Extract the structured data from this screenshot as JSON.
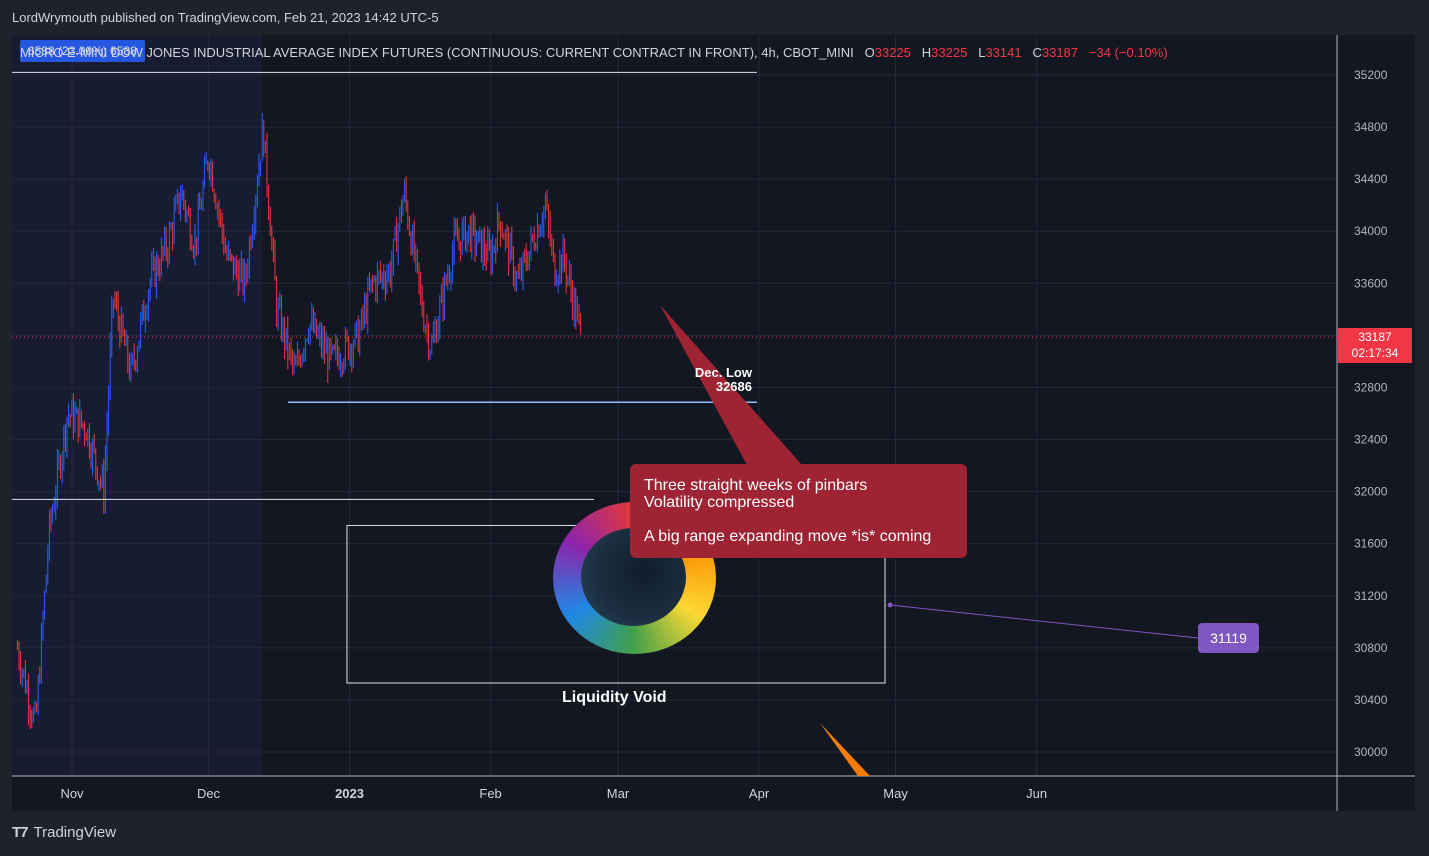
{
  "header": {
    "publisher_line": "LordWrymouth published on TradingView.com, Feb 21, 2023 14:42 UTC-5"
  },
  "symbol": {
    "badge": "6588 (23.00%) 6588",
    "name": "MICRO E-MINI DOW JONES INDUSTRIAL AVERAGE INDEX FUTURES (CONTINUOUS: CURRENT CONTRACT IN FRONT), 4h, CBOT_MINI",
    "open_label": "O",
    "open": "33225",
    "high_label": "H",
    "high": "33225",
    "low_label": "L",
    "low": "33141",
    "close_label": "C",
    "close": "33187",
    "change": "−34 (−0.10%)"
  },
  "price_tag": {
    "price": "33187",
    "countdown": "02:17:34"
  },
  "annotations": {
    "dec_low_title": "Dec. Low",
    "dec_low_value": "32686",
    "callout_line1": "Three straight weeks of pinbars",
    "callout_line2": "Volatility compressed",
    "callout_line3": "A big range expanding move *is* coming",
    "target_label": "31119",
    "void_label": "Liquidity Void"
  },
  "footer": {
    "logo_text": "TradingView"
  },
  "colors": {
    "background": "#131722",
    "up": "#2962ff",
    "down": "#f23645",
    "callout": "#9e2433",
    "target": "#7e57c2"
  },
  "chart_data": {
    "type": "candlestick",
    "timeframe": "4h",
    "y_ticks": [
      30000,
      30400,
      30800,
      31200,
      31600,
      32000,
      32400,
      32800,
      33200,
      33600,
      34000,
      34400,
      34800,
      35200
    ],
    "ylim": [
      29820,
      35400
    ],
    "x_ticks": [
      "Nov",
      "Dec",
      "2023",
      "Feb",
      "Mar",
      "Apr",
      "May",
      "Jun"
    ],
    "price_path": [
      [
        "Oct 20",
        30800
      ],
      [
        "Oct 24",
        30200
      ],
      [
        "Oct 27",
        31700
      ],
      [
        "Oct 31",
        32600
      ],
      [
        "Nov 4",
        32500
      ],
      [
        "Nov 8",
        32000
      ],
      [
        "Nov 10",
        33500
      ],
      [
        "Nov 14",
        32900
      ],
      [
        "Nov 18",
        33600
      ],
      [
        "Nov 22",
        33900
      ],
      [
        "Nov 25",
        34300
      ],
      [
        "Nov 28",
        33900
      ],
      [
        "Dec 1",
        34600
      ],
      [
        "Dec 5",
        33800
      ],
      [
        "Dec 9",
        33600
      ],
      [
        "Dec 13",
        34800
      ],
      [
        "Dec 16",
        33400
      ],
      [
        "Dec 20",
        32900
      ],
      [
        "Dec 23",
        33300
      ],
      [
        "Dec 28",
        33000
      ],
      [
        "Jan 3",
        33200
      ],
      [
        "Jan 6",
        33600
      ],
      [
        "Jan 10",
        33700
      ],
      [
        "Jan 13",
        34300
      ],
      [
        "Jan 17",
        33400
      ],
      [
        "Jan 19",
        33100
      ],
      [
        "Jan 24",
        33900
      ],
      [
        "Jan 27",
        34000
      ],
      [
        "Feb 1",
        33800
      ],
      [
        "Feb 3",
        34100
      ],
      [
        "Feb 7",
        33600
      ],
      [
        "Feb 10",
        33900
      ],
      [
        "Feb 13",
        34200
      ],
      [
        "Feb 15",
        33700
      ],
      [
        "Feb 17",
        33800
      ],
      [
        "Feb 21",
        33187
      ]
    ],
    "levels": [
      {
        "label": "Dec. Low",
        "price": 32686
      },
      {
        "price": 35220
      },
      {
        "price": 31940
      }
    ],
    "zones": [
      {
        "label": "Liquidity Void",
        "price_top": 31740,
        "price_bottom": 30530
      }
    ],
    "target": 31119,
    "last_price": 33187
  }
}
